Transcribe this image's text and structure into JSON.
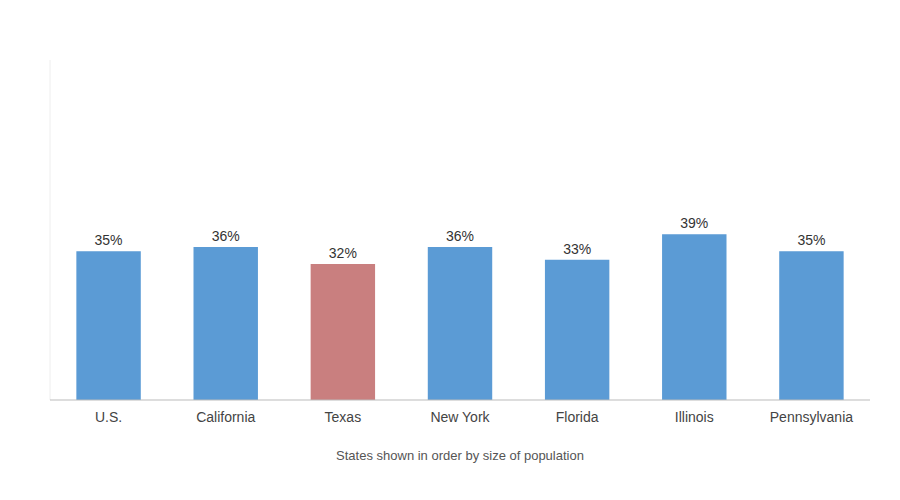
{
  "chart_data": {
    "type": "bar",
    "categories": [
      "U.S.",
      "California",
      "Texas",
      "New York",
      "Florida",
      "Illinois",
      "Pennsylvania"
    ],
    "values": [
      35,
      36,
      32,
      36,
      33,
      39,
      35
    ],
    "value_labels": [
      "35%",
      "36%",
      "32%",
      "36%",
      "33%",
      "39%",
      "35%"
    ],
    "colors": [
      "#5b9bd5",
      "#5b9bd5",
      "#c97f7f",
      "#5b9bd5",
      "#5b9bd5",
      "#5b9bd5",
      "#5b9bd5"
    ],
    "xlabel": "States shown in order by size of population",
    "ylim": [
      0,
      80
    ],
    "data_labels": true,
    "tick_labels": "x",
    "grid": false
  }
}
